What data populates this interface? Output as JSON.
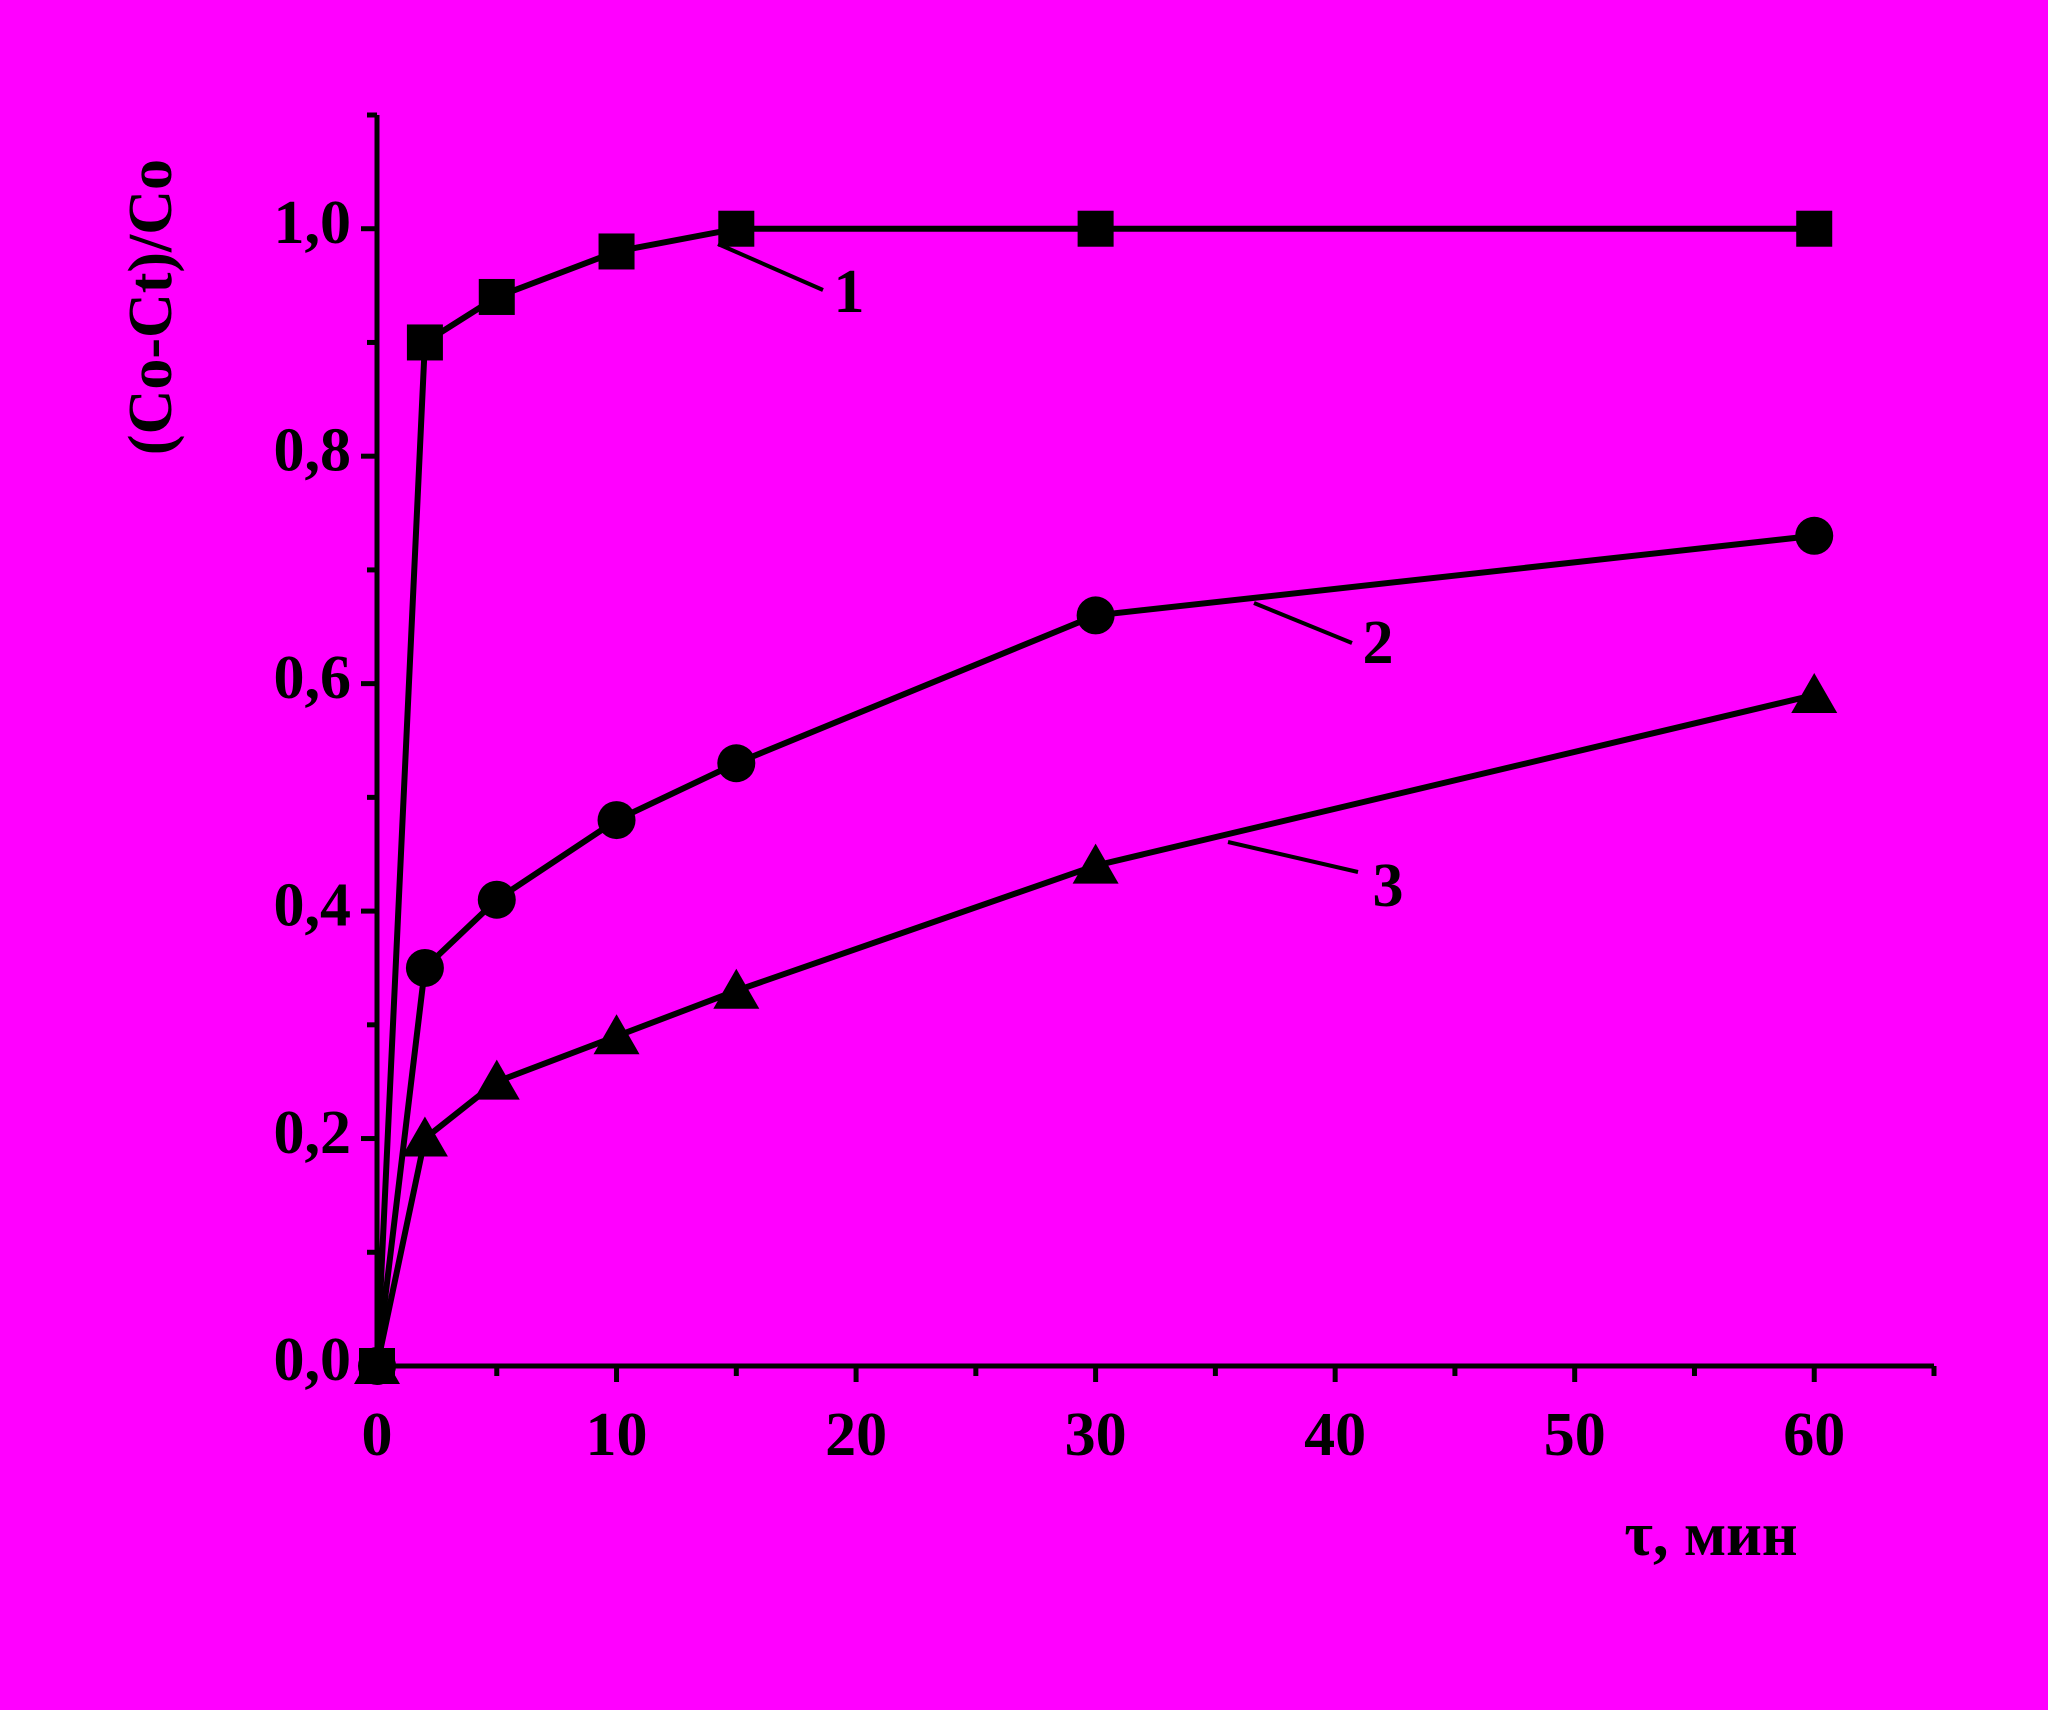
{
  "chart_data": {
    "type": "line",
    "x_label": "τ, мин",
    "y_label": "(Co-Ct)/Co",
    "x": [
      0,
      2,
      5,
      10,
      15,
      30,
      60
    ],
    "series": [
      {
        "name": "1",
        "color": "#000000",
        "marker": "square",
        "values": [
          0,
          0.9,
          0.94,
          0.98,
          1.0,
          1.0,
          1.0
        ]
      },
      {
        "name": "2",
        "color": "#000000",
        "marker": "circle",
        "values": [
          0,
          0.35,
          0.41,
          0.48,
          0.53,
          0.66,
          0.73
        ]
      },
      {
        "name": "3",
        "color": "#000000",
        "marker": "triangle",
        "values": [
          0,
          0.2,
          0.25,
          0.29,
          0.33,
          0.44,
          0.59
        ]
      }
    ],
    "xlim": [
      0,
      65
    ],
    "ylim": [
      0,
      1.1
    ],
    "xticks": [
      0,
      10,
      20,
      30,
      40,
      50,
      60
    ],
    "yticks": [
      {
        "value": 0,
        "label": "0,0"
      },
      {
        "value": 0.2,
        "label": "0,2"
      },
      {
        "value": 0.4,
        "label": "0,4"
      },
      {
        "value": 0.6,
        "label": "0,6"
      },
      {
        "value": 0.8,
        "label": "0,8"
      },
      {
        "value": 1.0,
        "label": "1,0"
      }
    ],
    "background": "#ff00ff",
    "grid": false
  }
}
